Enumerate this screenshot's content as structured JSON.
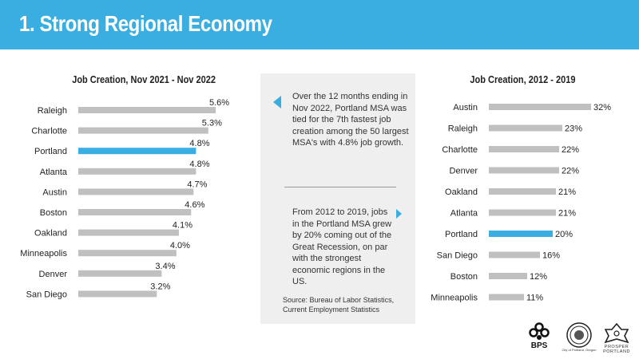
{
  "header": {
    "title": "1. Strong Regional Economy"
  },
  "colors": {
    "accent": "#3aaee0",
    "bar": "#c0c0c0",
    "highlight": "#3aaee0"
  },
  "chart_data": [
    {
      "type": "bar",
      "orientation": "horizontal",
      "title": "Job Creation, Nov 2021 - Nov 2022",
      "categories": [
        "Raleigh",
        "Charlotte",
        "Portland",
        "Atlanta",
        "Austin",
        "Boston",
        "Oakland",
        "Minneapolis",
        "Denver",
        "San Diego"
      ],
      "values": [
        5.6,
        5.3,
        4.8,
        4.8,
        4.7,
        4.6,
        4.1,
        4.0,
        3.4,
        3.2
      ],
      "labels": [
        "5.6%",
        "5.3%",
        "4.8%",
        "4.8%",
        "4.7%",
        "4.6%",
        "4.1%",
        "4.0%",
        "3.4%",
        "3.2%"
      ],
      "highlight": "Portland",
      "xlim": [
        0,
        5.6
      ]
    },
    {
      "type": "bar",
      "orientation": "horizontal",
      "title": "Job Creation, 2012 - 2019",
      "categories": [
        "Austin",
        "Raleigh",
        "Charlotte",
        "Denver",
        "Oakland",
        "Atlanta",
        "Portland",
        "San Diego",
        "Boston",
        "Minneapolis"
      ],
      "values": [
        32,
        23,
        22,
        22,
        21,
        21,
        20,
        16,
        12,
        11
      ],
      "labels": [
        "32%",
        "23%",
        "22%",
        "22%",
        "21%",
        "21%",
        "20%",
        "16%",
        "12%",
        "11%"
      ],
      "highlight": "Portland",
      "xlim": [
        0,
        32
      ]
    }
  ],
  "panel": {
    "text1": "Over the 12 months ending in Nov 2022, Portland MSA was tied for the 7th fastest job creation among the 50 largest MSA's with 4.8% job growth.",
    "text2": "From 2012 to 2019, jobs in the Portland MSA grew by 20% coming out of the Great Recession, on par with the strongest economic regions in the US.",
    "source": "Source: Bureau of Labor Statistics, Current Employment Statistics"
  },
  "logos": {
    "bps": "BPS",
    "seal_caption": "City of Portland, Oregon",
    "prosper_line1": "PROSPER",
    "prosper_line2": "PORTLAND"
  }
}
